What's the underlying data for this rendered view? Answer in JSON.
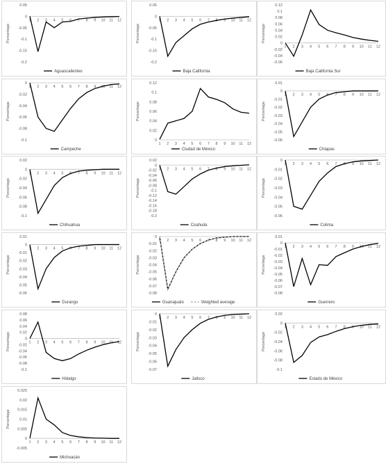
{
  "ylabel": "Percentage",
  "chart_data": [
    {
      "type": "line",
      "ylim": [
        -0.2,
        0.05
      ],
      "yticks": [
        "0.05",
        "0",
        "-0.05",
        "-0.1",
        "-0.15",
        "-0.2"
      ],
      "categories": [
        "1",
        "2",
        "3",
        "4",
        "5",
        "6",
        "7",
        "8",
        "9",
        "10",
        "11",
        "12"
      ],
      "series": [
        {
          "name": "Aguascalientes",
          "values": [
            0,
            -0.155,
            -0.025,
            -0.05,
            -0.025,
            -0.022,
            -0.012,
            -0.008,
            -0.005,
            -0.003,
            -0.002,
            -0.001
          ]
        }
      ]
    },
    {
      "type": "line",
      "ylim": [
        -0.2,
        0.05
      ],
      "yticks": [
        "0.05",
        "0",
        "-0.05",
        "-0.1",
        "-0.15",
        "-0.2"
      ],
      "categories": [
        "1",
        "2",
        "3",
        "4",
        "5",
        "6",
        "7",
        "8",
        "9",
        "10",
        "11",
        "12"
      ],
      "series": [
        {
          "name": "Baja California",
          "values": [
            0,
            -0.175,
            -0.115,
            -0.085,
            -0.055,
            -0.035,
            -0.025,
            -0.018,
            -0.012,
            -0.008,
            -0.005,
            -0.002
          ]
        }
      ]
    },
    {
      "type": "line",
      "ylim": [
        -0.06,
        0.12
      ],
      "yticks": [
        "0.12",
        "0.1",
        "0.08",
        "0.06",
        "0.04",
        "0.02",
        "0",
        "-0.02",
        "-0.04",
        "-0.06"
      ],
      "categories": [
        "1",
        "2",
        "3",
        "4",
        "5",
        "6",
        "7",
        "8",
        "9",
        "10",
        "11",
        "12"
      ],
      "series": [
        {
          "name": "Baja California Sur",
          "values": [
            0,
            -0.042,
            0.025,
            0.104,
            0.058,
            0.04,
            0.032,
            0.025,
            0.017,
            0.012,
            0.008,
            0.005
          ]
        }
      ]
    },
    {
      "type": "line",
      "ylim": [
        -0.1,
        0
      ],
      "yticks": [
        "0",
        "-0.02",
        "-0.04",
        "-0.06",
        "-0.08",
        "-0.1"
      ],
      "categories": [
        "1",
        "2",
        "3",
        "4",
        "5",
        "6",
        "7",
        "8",
        "9",
        "10",
        "11",
        "12"
      ],
      "series": [
        {
          "name": "Campeche",
          "values": [
            0,
            -0.06,
            -0.08,
            -0.085,
            -0.065,
            -0.045,
            -0.028,
            -0.017,
            -0.01,
            -0.006,
            -0.003,
            -0.002
          ]
        }
      ]
    },
    {
      "type": "line",
      "ylim": [
        0,
        0.12
      ],
      "yticks": [
        "0.12",
        "0.1",
        "0.08",
        "0.06",
        "0.04",
        "0.02",
        "0"
      ],
      "categories": [
        "1",
        "2",
        "3",
        "4",
        "5",
        "6",
        "7",
        "8",
        "9",
        "10",
        "11",
        "12"
      ],
      "series": [
        {
          "name": "Ciudad de México",
          "values": [
            0.001,
            0.035,
            0.04,
            0.045,
            0.06,
            0.108,
            0.09,
            0.085,
            0.078,
            0.065,
            0.058,
            0.056
          ]
        }
      ]
    },
    {
      "type": "line",
      "ylim": [
        -0.06,
        0.01
      ],
      "yticks": [
        "0.01",
        "0",
        "-0.01",
        "-0.02",
        "-0.03",
        "-0.04",
        "-0.05",
        "-0.06"
      ],
      "categories": [
        "1",
        "2",
        "3",
        "4",
        "5",
        "6",
        "7",
        "8",
        "9",
        "10",
        "11",
        "12"
      ],
      "series": [
        {
          "name": "Chiapas",
          "values": [
            0,
            -0.056,
            -0.038,
            -0.02,
            -0.01,
            -0.005,
            -0.002,
            -0.001,
            0,
            0,
            0,
            0
          ]
        }
      ]
    },
    {
      "type": "line",
      "ylim": [
        -0.1,
        0.02
      ],
      "yticks": [
        "0.02",
        "0",
        "-0.02",
        "-0.04",
        "-0.06",
        "-0.08",
        "-0.1"
      ],
      "categories": [
        "1",
        "2",
        "3",
        "4",
        "5",
        "6",
        "7",
        "8",
        "9",
        "10",
        "11",
        "12"
      ],
      "series": [
        {
          "name": "Chihuahua",
          "values": [
            0,
            -0.095,
            -0.065,
            -0.035,
            -0.018,
            -0.009,
            -0.004,
            -0.002,
            -0.001,
            0,
            0,
            0
          ]
        }
      ]
    },
    {
      "type": "line",
      "ylim": [
        -0.2,
        0.02
      ],
      "yticks": [
        "0.02",
        "0",
        "-0.02",
        "-0.04",
        "-0.06",
        "-0.08",
        "-0.1",
        "-0.12",
        "-0.14",
        "-0.16",
        "-0.18",
        "-0.2"
      ],
      "categories": [
        "1",
        "2",
        "3",
        "4",
        "5",
        "6",
        "7",
        "8",
        "9",
        "10",
        "11",
        "12"
      ],
      "series": [
        {
          "name": "Coahuila",
          "values": [
            0,
            -0.105,
            -0.115,
            -0.085,
            -0.055,
            -0.035,
            -0.02,
            -0.012,
            -0.006,
            -0.003,
            -0.001,
            0.001
          ]
        }
      ]
    },
    {
      "type": "line",
      "ylim": [
        -0.06,
        0
      ],
      "yticks": [
        "0",
        "-0.01",
        "-0.02",
        "-0.03",
        "-0.04",
        "-0.05",
        "-0.06"
      ],
      "categories": [
        "1",
        "2",
        "3",
        "4",
        "5",
        "6",
        "7",
        "8",
        "9",
        "10",
        "11",
        "12"
      ],
      "series": [
        {
          "name": "Colima",
          "values": [
            0,
            -0.05,
            -0.053,
            -0.038,
            -0.023,
            -0.014,
            -0.007,
            -0.004,
            -0.002,
            -0.001,
            -0.0005,
            0
          ]
        }
      ]
    },
    {
      "type": "line",
      "ylim": [
        -0.06,
        0.01
      ],
      "yticks": [
        "0.01",
        "0",
        "-0.01",
        "-0.02",
        "-0.03",
        "-0.04",
        "-0.05",
        "-0.06"
      ],
      "categories": [
        "1",
        "2",
        "3",
        "4",
        "5",
        "6",
        "7",
        "8",
        "9",
        "10",
        "11",
        "12"
      ],
      "series": [
        {
          "name": "Durango",
          "values": [
            0,
            -0.055,
            -0.03,
            -0.016,
            -0.008,
            -0.004,
            -0.002,
            -0.001,
            0,
            0,
            0,
            0
          ]
        }
      ]
    },
    {
      "type": "line",
      "ylim": [
        -0.08,
        0
      ],
      "yticks": [
        "0",
        "-0.01",
        "-0.02",
        "-0.03",
        "-0.04",
        "-0.05",
        "-0.06",
        "-0.07",
        "-0.08"
      ],
      "categories": [
        "1",
        "2",
        "3",
        "4",
        "5",
        "6",
        "7",
        "8",
        "9",
        "10",
        "11",
        "12"
      ],
      "series": [
        {
          "name": "Guanajuato",
          "values": [
            0,
            -0.075,
            -0.05,
            -0.03,
            -0.018,
            -0.01,
            -0.005,
            -0.002,
            -0.001,
            0,
            0,
            0
          ]
        },
        {
          "name": "Weighted average",
          "values": [
            0,
            -0.075,
            -0.05,
            -0.03,
            -0.018,
            -0.01,
            -0.005,
            -0.002,
            -0.001,
            0,
            0,
            0
          ]
        }
      ]
    },
    {
      "type": "line",
      "ylim": [
        -0.08,
        0.01
      ],
      "yticks": [
        "0.01",
        "0",
        "-0.01",
        "-0.02",
        "-0.03",
        "-0.04",
        "-0.05",
        "-0.06",
        "-0.07",
        "-0.08"
      ],
      "categories": [
        "1",
        "2",
        "3",
        "4",
        "5",
        "6",
        "7",
        "8",
        "9",
        "10",
        "11",
        "12"
      ],
      "series": [
        {
          "name": "Guerrero",
          "values": [
            0,
            -0.07,
            -0.025,
            -0.067,
            -0.035,
            -0.036,
            -0.022,
            -0.016,
            -0.01,
            -0.006,
            -0.003,
            -0.001
          ]
        }
      ]
    },
    {
      "type": "line",
      "ylim": [
        -0.1,
        0.08
      ],
      "yticks": [
        "0.08",
        "0.06",
        "0.04",
        "0.02",
        "0",
        "-0.02",
        "-0.04",
        "-0.06",
        "-0.08",
        "-0.1"
      ],
      "categories": [
        "1",
        "2",
        "3",
        "4",
        "5",
        "6",
        "7",
        "8",
        "9",
        "10",
        "11",
        "12"
      ],
      "series": [
        {
          "name": "Hidalgo",
          "values": [
            0,
            0.053,
            -0.045,
            -0.065,
            -0.072,
            -0.065,
            -0.05,
            -0.038,
            -0.028,
            -0.02,
            -0.014,
            -0.01
          ]
        }
      ]
    },
    {
      "type": "line",
      "ylim": [
        -0.07,
        0
      ],
      "yticks": [
        "0",
        "-0.01",
        "-0.02",
        "-0.03",
        "-0.04",
        "-0.05",
        "-0.06",
        "-0.07"
      ],
      "categories": [
        "1",
        "2",
        "3",
        "4",
        "5",
        "6",
        "7",
        "8",
        "9",
        "10",
        "11",
        "12"
      ],
      "series": [
        {
          "name": "Jalisco",
          "values": [
            0,
            -0.066,
            -0.045,
            -0.03,
            -0.02,
            -0.012,
            -0.007,
            -0.004,
            -0.002,
            -0.001,
            -0.0005,
            0
          ]
        }
      ]
    },
    {
      "type": "line",
      "ylim": [
        -0.1,
        0.02
      ],
      "yticks": [
        "0.02",
        "0",
        "-0.02",
        "-0.04",
        "-0.06",
        "-0.08",
        "-0.1"
      ],
      "categories": [
        "1",
        "2",
        "3",
        "4",
        "5",
        "6",
        "7",
        "8",
        "9",
        "10",
        "11",
        "12"
      ],
      "series": [
        {
          "name": "Estado de México",
          "values": [
            0,
            -0.085,
            -0.07,
            -0.042,
            -0.03,
            -0.025,
            -0.018,
            -0.012,
            -0.008,
            -0.005,
            -0.003,
            -0.002
          ]
        }
      ]
    },
    {
      "type": "line",
      "ylim": [
        -0.005,
        0.025
      ],
      "yticks": [
        "0.025",
        "0.02",
        "0.015",
        "0.01",
        "0.005",
        "0",
        "-0.005"
      ],
      "categories": [
        "1",
        "2",
        "3",
        "4",
        "5",
        "6",
        "7",
        "8",
        "9",
        "10",
        "11",
        "12"
      ],
      "series": [
        {
          "name": "Michoacán",
          "values": [
            0,
            0.021,
            0.01,
            0.007,
            0.003,
            0.0015,
            0.0008,
            0.0004,
            0.0002,
            0.0001,
            0,
            0
          ]
        }
      ]
    }
  ]
}
